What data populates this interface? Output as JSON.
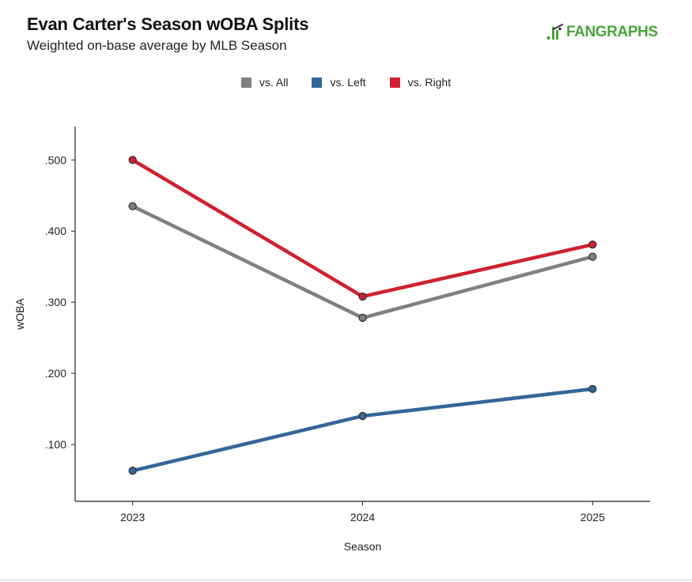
{
  "header": {
    "title": "Evan Carter's Season wOBA Splits",
    "subtitle": "Weighted on-base average by MLB Season"
  },
  "logo": {
    "text": "FANGRAPHS",
    "icon": "fangraphs-batter-icon",
    "color": "#4aa53a"
  },
  "chart_data": {
    "type": "line",
    "x": [
      2023,
      2024,
      2025
    ],
    "x_tick_labels": [
      "2023",
      "2024",
      "2025"
    ],
    "y_tick_values": [
      0.1,
      0.2,
      0.3,
      0.4,
      0.5
    ],
    "y_tick_labels": [
      ".100",
      ".200",
      ".300",
      ".400",
      ".500"
    ],
    "xlabel": "Season",
    "ylabel": "wOBA",
    "ylim": [
      0.02,
      0.547
    ],
    "xlim": [
      2022.75,
      2025.25
    ],
    "grid": false,
    "legend_position": "top-center",
    "series": [
      {
        "name": "vs. All",
        "color": "#808080",
        "values": [
          0.435,
          0.278,
          0.364
        ]
      },
      {
        "name": "vs. Left",
        "color": "#336699",
        "values": [
          0.063,
          0.14,
          0.178
        ]
      },
      {
        "name": "vs. Right",
        "color": "#d0202e",
        "values": [
          0.5,
          0.308,
          0.381
        ]
      }
    ]
  }
}
